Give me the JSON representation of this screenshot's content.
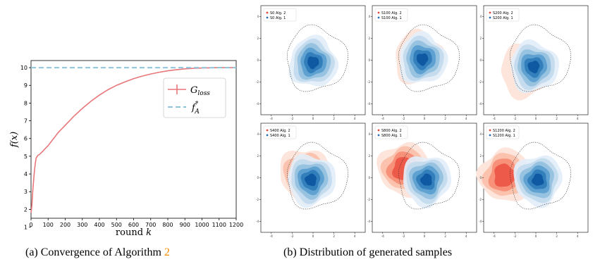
{
  "chart_data": [
    {
      "type": "line",
      "title": "",
      "xlabel": "round",
      "xlabel_var": "k",
      "ylabel": "f(x)",
      "xlim": [
        0,
        1200
      ],
      "ylim": [
        1.5,
        10.4
      ],
      "xticks": [
        "0",
        "100",
        "200",
        "300",
        "400",
        "500",
        "600",
        "700",
        "800",
        "900",
        "1000",
        "1100",
        "1200"
      ],
      "yticks": [
        "1",
        "2",
        "3",
        "4",
        "5",
        "6",
        "7",
        "8",
        "9",
        "10"
      ],
      "grid": false,
      "legend_position": "center-right",
      "series": [
        {
          "name": "G_loss",
          "legend_main": "G",
          "legend_sub": "loss",
          "color": "#e8777a",
          "x": [
            0,
            5,
            10,
            15,
            20,
            25,
            30,
            40,
            50,
            60,
            70,
            80,
            100,
            120,
            140,
            160,
            180,
            200,
            250,
            300,
            350,
            400,
            450,
            500,
            550,
            600,
            650,
            700,
            750,
            800,
            850,
            900,
            950,
            1000,
            1050,
            1100,
            1150,
            1200
          ],
          "y": [
            1.8,
            2.2,
            3.0,
            3.6,
            4.2,
            4.6,
            4.9,
            5.05,
            5.1,
            5.2,
            5.3,
            5.4,
            5.6,
            5.85,
            6.1,
            6.35,
            6.55,
            6.75,
            7.25,
            7.7,
            8.1,
            8.45,
            8.75,
            9.0,
            9.2,
            9.38,
            9.52,
            9.64,
            9.74,
            9.82,
            9.88,
            9.93,
            9.96,
            9.98,
            9.99,
            10.0,
            10.0,
            10.0
          ]
        },
        {
          "name": "f_A^*",
          "legend_main": "f",
          "legend_sub": "A",
          "legend_sup": "*",
          "color": "#8fc5dc",
          "style": "dashed",
          "x": [
            0,
            1200
          ],
          "y": [
            10,
            10
          ]
        }
      ]
    },
    {
      "type": "heatmap",
      "subtype": "kde-density-grid",
      "panels": [
        {
          "step": "0",
          "legend": [
            "S0 Alg. 2",
            "S0 Alg. 1"
          ],
          "red_level": 0,
          "red_center": [
            0,
            0
          ]
        },
        {
          "step": "100",
          "legend": [
            "S100 Alg. 2",
            "S100 Alg. 1"
          ],
          "red_level": 1,
          "red_center": [
            -0.5,
            0.2
          ]
        },
        {
          "step": "200",
          "legend": [
            "S200 Alg. 2",
            "S200 Alg. 1"
          ],
          "red_level": 1,
          "red_center": [
            -1.0,
            -1.0
          ]
        },
        {
          "step": "400",
          "legend": [
            "S400 Alg. 2",
            "S400 Alg. 1"
          ],
          "red_level": 2,
          "red_center": [
            -0.8,
            0.3
          ]
        },
        {
          "step": "800",
          "legend": [
            "S800 Alg. 2",
            "S800 Alg. 1"
          ],
          "red_level": 4,
          "red_center": [
            -2.0,
            0.8
          ]
        },
        {
          "step": "1200",
          "legend": [
            "S1200 Alg. 2",
            "S1200 Alg. 1"
          ],
          "red_level": 4,
          "red_center": [
            -3.0,
            0.2
          ]
        }
      ],
      "xticks": [
        "-4",
        "-2",
        "0",
        "2",
        "4"
      ],
      "yticks": [
        "-4",
        "-2",
        "0",
        "2",
        "4"
      ],
      "xlim": [
        -5,
        5
      ],
      "ylim": [
        -5,
        5
      ],
      "alg2_color": "#e04a3a",
      "alg1_color": "#2a6db5"
    }
  ],
  "captions": {
    "a_label": "(a) Convergence of Algorithm",
    "a_num": "2",
    "b_label": "(b) Distribution of generated samples"
  }
}
